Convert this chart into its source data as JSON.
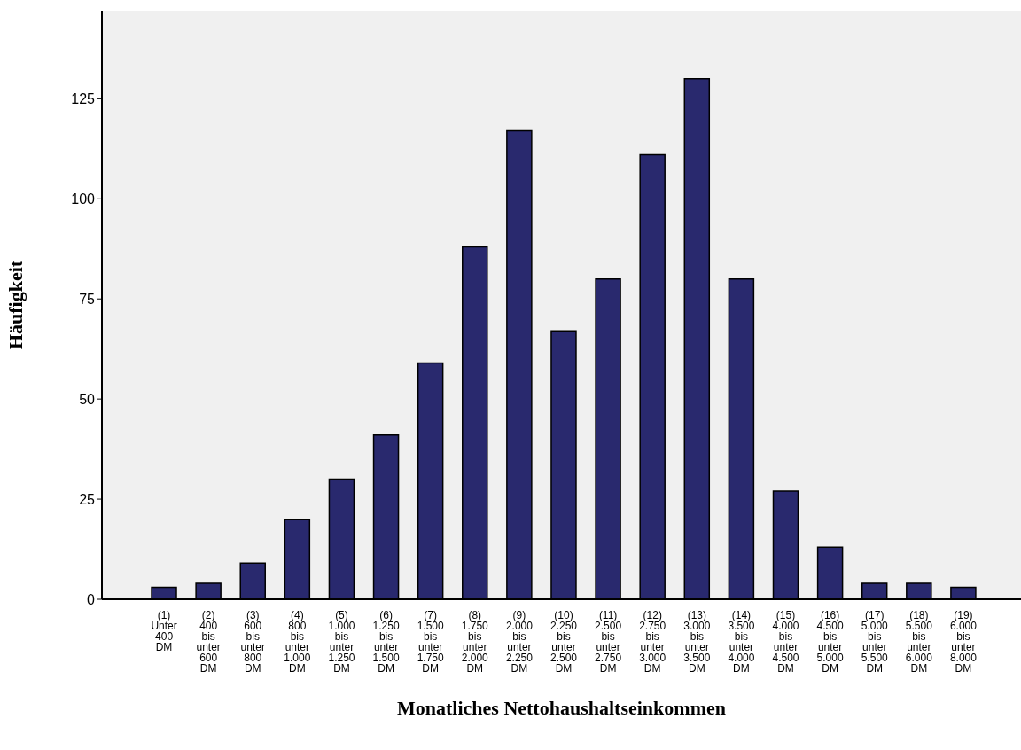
{
  "chart_data": {
    "type": "bar",
    "xlabel": "Monatliches Nettohaushaltseinkommen",
    "ylabel": "Häufigkeit",
    "categories": [
      "(1) Unter 400 DM",
      "(2) 400 bis unter 600 DM",
      "(3) 600 bis unter 800 DM",
      "(4) 800 bis unter 1.000 DM",
      "(5) 1.000 bis unter 1.250 DM",
      "(6) 1.250 bis unter 1.500 DM",
      "(7) 1.500 bis unter 1.750 DM",
      "(8) 1.750 bis unter 2.000 DM",
      "(9) 2.000 bis unter 2.250 DM",
      "(10) 2.250 bis unter 2.500 DM",
      "(11) 2.500 bis unter 2.750 DM",
      "(12) 2.750 bis unter 3.000 DM",
      "(13) 3.000 bis unter 3.500 DM",
      "(14) 3.500 bis unter 4.000 DM",
      "(15) 4.000 bis unter 4.500 DM",
      "(16) 4.500 bis unter 5.000 DM",
      "(17) 5.000 bis unter 5.500 DM",
      "(18) 5.500 bis unter 6.000 DM",
      "(19) 6.000 bis unter 8.000 DM"
    ],
    "values": [
      3,
      4,
      9,
      20,
      30,
      41,
      59,
      88,
      117,
      67,
      80,
      111,
      130,
      80,
      27,
      13,
      4,
      4,
      3
    ],
    "color": "#29296e",
    "ylim": [
      0,
      147
    ],
    "yticks": [
      0,
      25,
      50,
      75,
      100,
      125
    ],
    "grid": false
  }
}
